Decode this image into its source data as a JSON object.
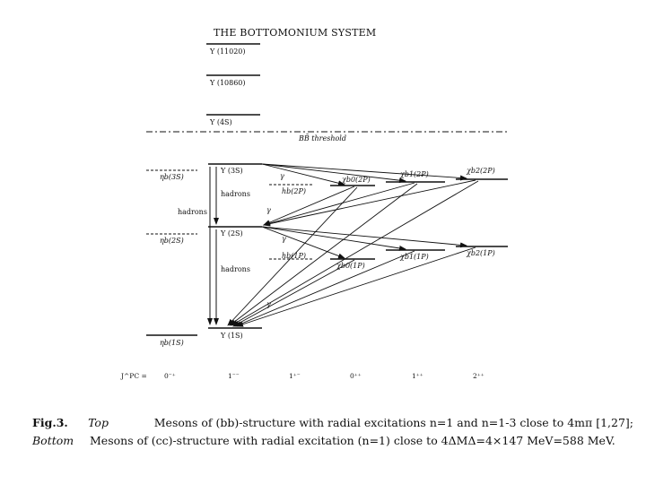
{
  "title": "THE BOTTOMONIUM SYSTEM",
  "levels": {
    "upsilon_11020": "Υ (11020)",
    "upsilon_10860": "Υ (10860)",
    "upsilon_4s": "Υ (4S)",
    "threshold": "BB̄ threshold",
    "upsilon_3s": "Υ (3S)",
    "upsilon_2s": "Υ (2S)",
    "upsilon_1s": "Υ (1S)",
    "eta_3s": "ηb(3S)",
    "eta_2s": "ηb(2S)",
    "eta_1s": "ηb(1S)",
    "hb_2p": "hb(2P)",
    "hb_1p": "hb(1P)",
    "chi_b0_2p": "χb0(2P)",
    "chi_b1_2p": "χb1(2P)",
    "chi_b2_2p": "χb2(2P)",
    "chi_b0_1p": "χb0(1P)",
    "chi_b1_1p": "χb1(1P)",
    "chi_b2_1p": "χb2(1P)"
  },
  "annotations": {
    "hadrons_a": "hadrons",
    "hadrons_b": "hadrons",
    "hadrons_c": "hadrons",
    "gamma": "γ"
  },
  "jpc": {
    "label": "J^PC =",
    "values": [
      "0⁻⁺",
      "1⁻⁻",
      "1⁺⁻",
      "0⁺⁺",
      "1⁺⁺",
      "2⁺⁺"
    ]
  },
  "caption": {
    "fig": "Fig.3.",
    "top_label": "Top",
    "top_text": "Mesons of (bb)-structure with radial excitations n=1 and n=1-3 close to 4mπ [1,27];",
    "bottom_label": "Bottom",
    "bottom_text": "Mesons of (cc)-structure with radial excitation (n=1) close to 4ΔMΔ=4×147 MeV=588 MeV."
  }
}
